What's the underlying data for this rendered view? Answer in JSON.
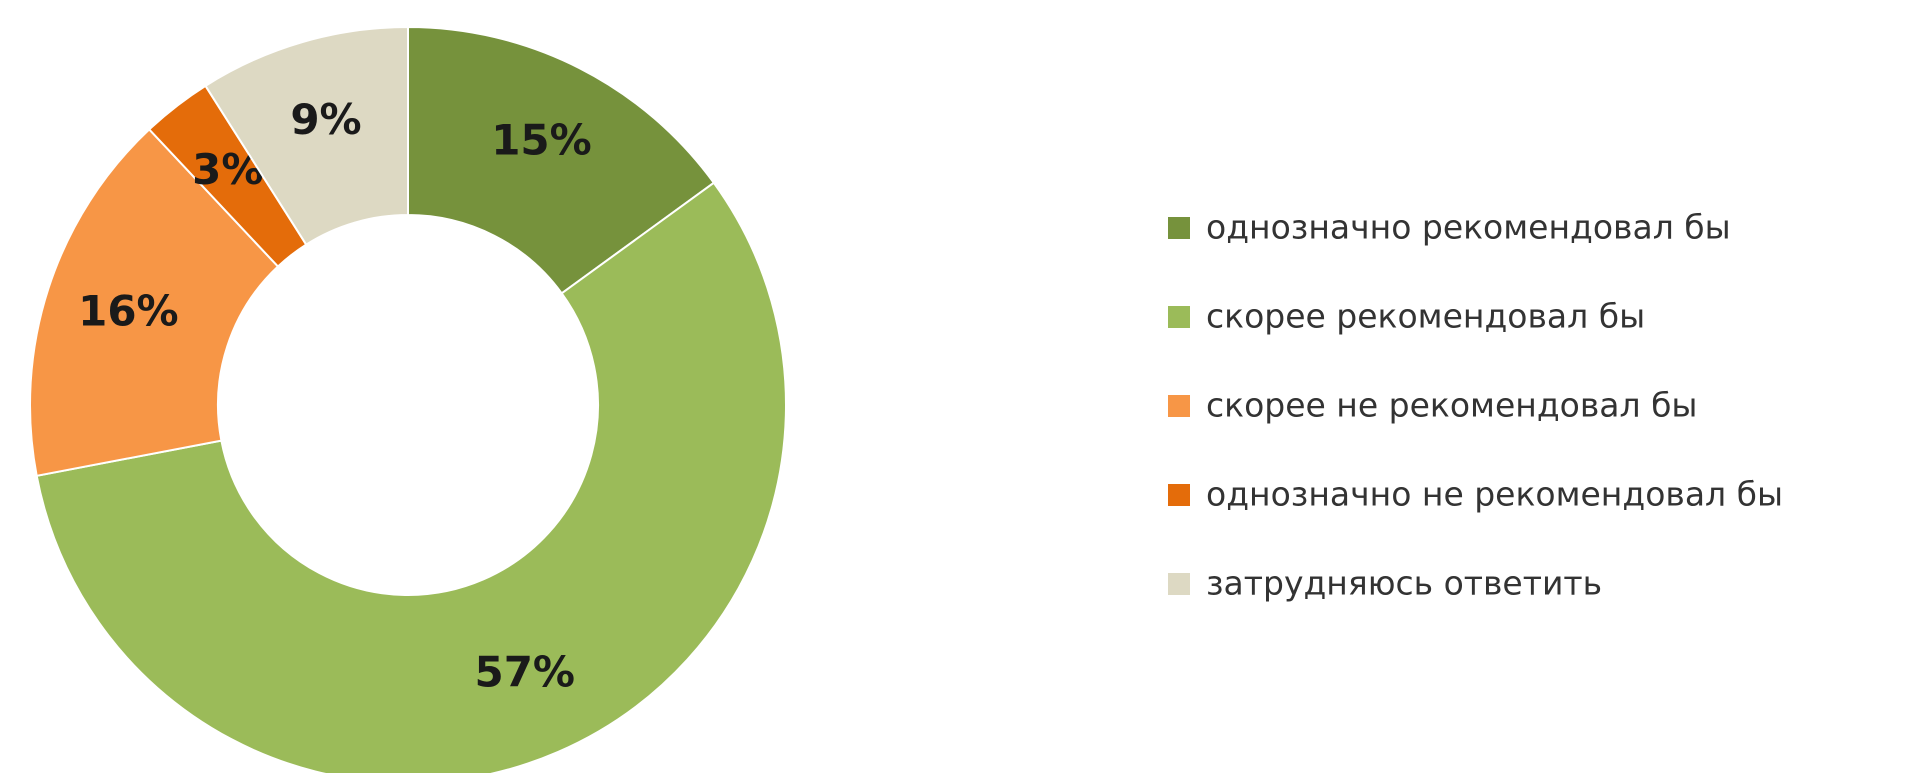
{
  "chart_data": {
    "type": "donut",
    "categories": [
      "однозначно рекомендовал бы",
      "скорее рекомендовал бы",
      "скорее не рекомендовал бы",
      "однозначно не рекомендовал бы",
      "затрудняюсь ответить"
    ],
    "values": [
      15,
      57,
      16,
      3,
      9
    ],
    "value_labels": [
      "15%",
      "57%",
      "16%",
      "3%",
      "9%"
    ],
    "colors": [
      "#76923c",
      "#9bbb59",
      "#f79646",
      "#e46c0a",
      "#ddd9c3"
    ],
    "legend": "right"
  }
}
